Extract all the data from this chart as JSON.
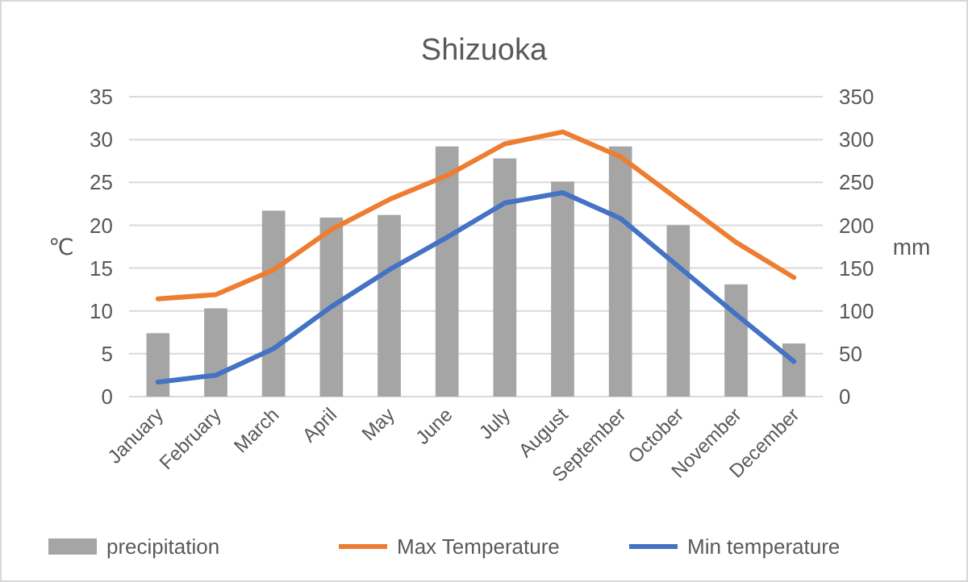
{
  "chart_data": {
    "type": "line",
    "title": "Shizuoka",
    "ylabel": "℃",
    "y2label": "mm",
    "categories": [
      "January",
      "February",
      "March",
      "April",
      "May",
      "June",
      "July",
      "August",
      "September",
      "October",
      "November",
      "December"
    ],
    "series": [
      {
        "name": "precipitation",
        "type": "bar",
        "axis": "y2",
        "color": "#a5a5a5",
        "values": [
          74,
          103,
          217,
          209,
          212,
          292,
          278,
          251,
          292,
          200,
          131,
          62
        ]
      },
      {
        "name": "Max Temperature",
        "color": "#ed7d31",
        "values": [
          11.4,
          11.9,
          14.8,
          19.5,
          23,
          25.8,
          29.5,
          30.9,
          28,
          23,
          18,
          13.9
        ]
      },
      {
        "name": "Min temperature",
        "color": "#4472c4",
        "values": [
          1.7,
          2.5,
          5.6,
          10.5,
          14.8,
          18.6,
          22.6,
          23.8,
          20.8,
          15.2,
          9.6,
          4.1
        ]
      }
    ],
    "ylim": [
      0,
      35
    ],
    "yticks": [
      0,
      5,
      10,
      15,
      20,
      25,
      30,
      35
    ],
    "y2lim": [
      0,
      350
    ],
    "y2ticks": [
      0,
      50,
      100,
      150,
      200,
      250,
      300,
      350
    ],
    "grid": "y",
    "legend": "bottom",
    "marker": "none",
    "line_style": "solid"
  }
}
